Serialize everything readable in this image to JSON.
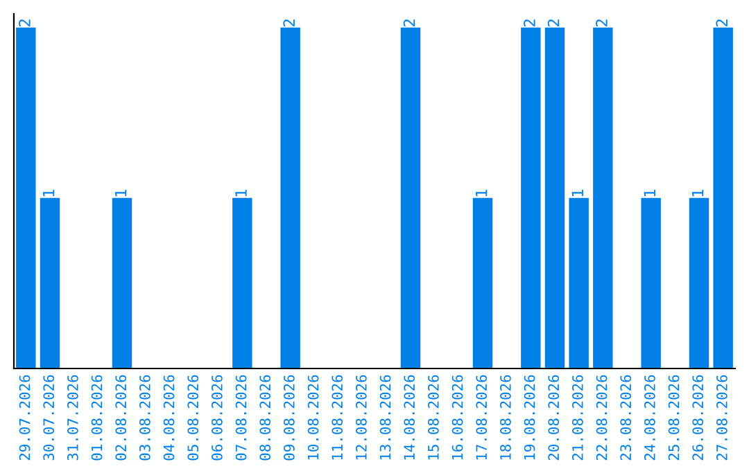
{
  "chart_data": {
    "type": "bar",
    "categories": [
      "29.07.2026",
      "30.07.2026",
      "31.07.2026",
      "01.08.2026",
      "02.08.2026",
      "03.08.2026",
      "04.08.2026",
      "05.08.2026",
      "06.08.2026",
      "07.08.2026",
      "08.08.2026",
      "09.08.2026",
      "10.08.2026",
      "11.08.2026",
      "12.08.2026",
      "13.08.2026",
      "14.08.2026",
      "15.08.2026",
      "16.08.2026",
      "17.08.2026",
      "18.08.2026",
      "19.08.2026",
      "20.08.2026",
      "21.08.2026",
      "22.08.2026",
      "23.08.2026",
      "24.08.2026",
      "25.08.2026",
      "26.08.2026",
      "27.08.2026"
    ],
    "values": [
      2,
      1,
      0,
      0,
      1,
      0,
      0,
      0,
      0,
      1,
      0,
      2,
      0,
      0,
      0,
      0,
      2,
      0,
      0,
      1,
      0,
      2,
      2,
      1,
      2,
      0,
      1,
      0,
      1,
      2
    ],
    "value_labels": [
      "2",
      "1",
      null,
      null,
      "1",
      null,
      null,
      null,
      null,
      "1",
      null,
      "2",
      null,
      null,
      null,
      null,
      "2",
      null,
      null,
      "1",
      null,
      "2",
      "2",
      "1",
      "2",
      null,
      "1",
      null,
      "1",
      "2"
    ],
    "color": "#0080e6",
    "tick_labels": "x",
    "grid": false,
    "legend": false
  }
}
